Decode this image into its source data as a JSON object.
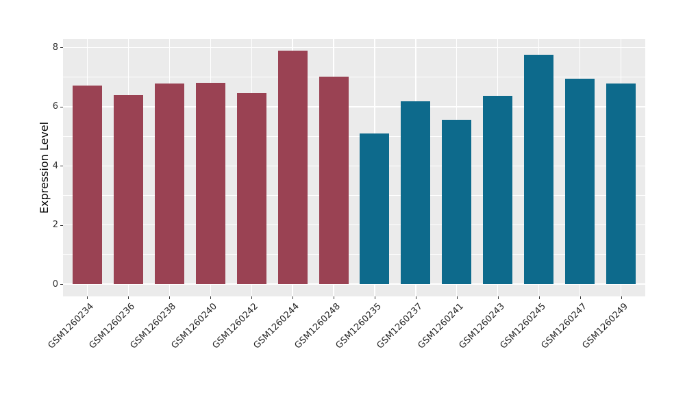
{
  "chart_data": {
    "type": "bar",
    "title": "",
    "xlabel": "",
    "ylabel": "Expression Level",
    "categories": [
      "GSM1260234",
      "GSM1260236",
      "GSM1260238",
      "GSM1260240",
      "GSM1260242",
      "GSM1260244",
      "GSM1260248",
      "GSM1260235",
      "GSM1260237",
      "GSM1260241",
      "GSM1260243",
      "GSM1260245",
      "GSM1260247",
      "GSM1260249"
    ],
    "values": [
      6.72,
      6.38,
      6.78,
      6.81,
      6.46,
      7.89,
      7.02,
      5.09,
      6.17,
      5.56,
      6.37,
      7.76,
      6.94,
      6.79
    ],
    "bar_groups": [
      1,
      1,
      1,
      1,
      1,
      1,
      1,
      2,
      2,
      2,
      2,
      2,
      2,
      2
    ],
    "group_colors": {
      "1": "#9A4253",
      "2": "#0D6A8C"
    },
    "yticks": [
      0,
      2,
      4,
      6,
      8
    ],
    "minor_yticks": [
      1,
      3,
      5,
      7
    ],
    "ylim": [
      0,
      8.3
    ],
    "grid": "on",
    "legend": "none",
    "panel_bg": "#EBEBEB",
    "grid_color": "#FFFFFF",
    "tick_color": "#333333"
  }
}
